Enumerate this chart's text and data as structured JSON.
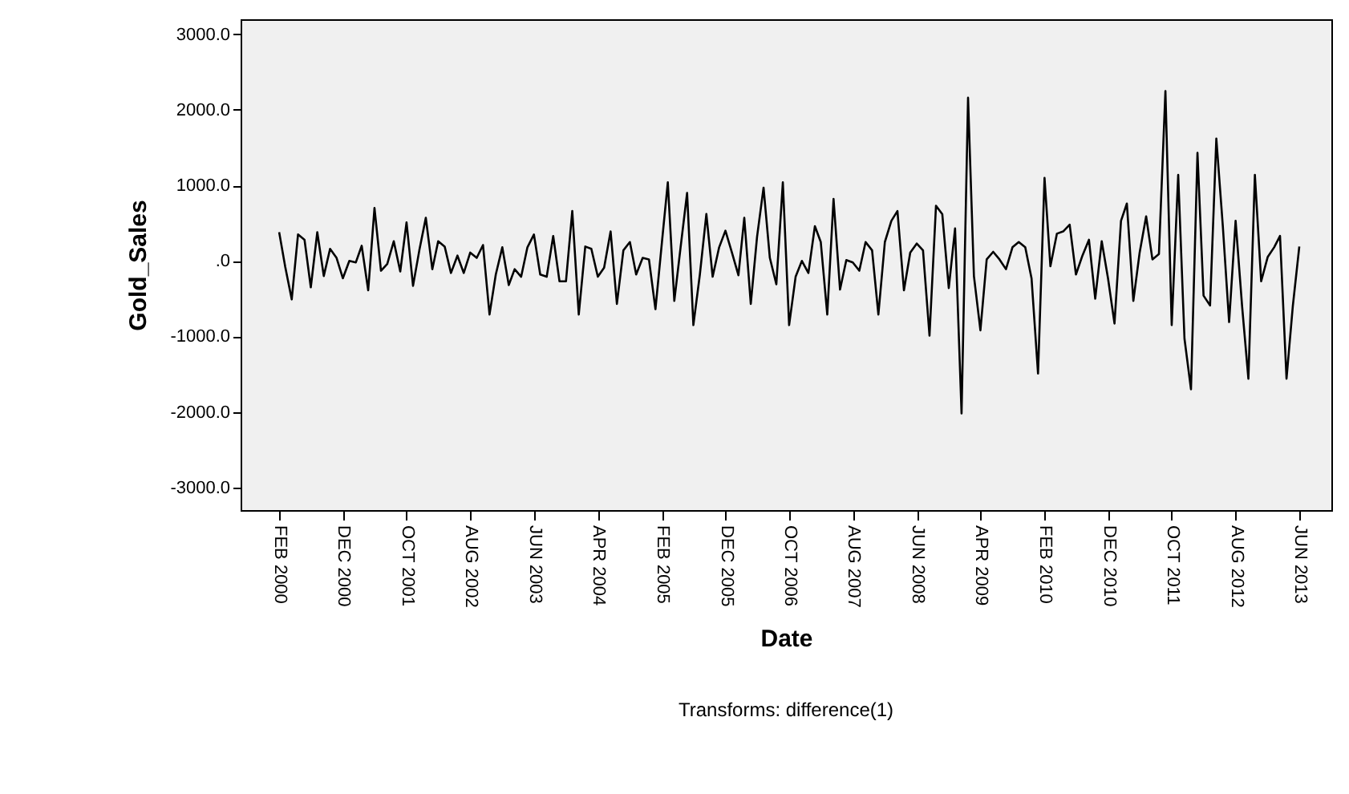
{
  "chart_data": {
    "type": "line",
    "xlabel": "Date",
    "ylabel": "Gold_Sales",
    "annotations": [
      "Transforms: difference(1)"
    ],
    "x": [
      "2000-02",
      "2000-03",
      "2000-04",
      "2000-05",
      "2000-06",
      "2000-07",
      "2000-08",
      "2000-09",
      "2000-10",
      "2000-11",
      "2000-12",
      "2001-01",
      "2001-02",
      "2001-03",
      "2001-04",
      "2001-05",
      "2001-06",
      "2001-07",
      "2001-08",
      "2001-09",
      "2001-10",
      "2001-11",
      "2001-12",
      "2002-01",
      "2002-02",
      "2002-03",
      "2002-04",
      "2002-05",
      "2002-06",
      "2002-07",
      "2002-08",
      "2002-09",
      "2002-10",
      "2002-11",
      "2002-12",
      "2003-01",
      "2003-02",
      "2003-03",
      "2003-04",
      "2003-05",
      "2003-06",
      "2003-07",
      "2003-08",
      "2003-09",
      "2003-10",
      "2003-11",
      "2003-12",
      "2004-01",
      "2004-02",
      "2004-03",
      "2004-04",
      "2004-05",
      "2004-06",
      "2004-07",
      "2004-08",
      "2004-09",
      "2004-10",
      "2004-11",
      "2004-12",
      "2005-01",
      "2005-02",
      "2005-03",
      "2005-04",
      "2005-05",
      "2005-06",
      "2005-07",
      "2005-08",
      "2005-09",
      "2005-10",
      "2005-11",
      "2005-12",
      "2006-01",
      "2006-02",
      "2006-03",
      "2006-04",
      "2006-05",
      "2006-06",
      "2006-07",
      "2006-08",
      "2006-09",
      "2006-10",
      "2006-11",
      "2006-12",
      "2007-01",
      "2007-02",
      "2007-03",
      "2007-04",
      "2007-05",
      "2007-06",
      "2007-07",
      "2007-08",
      "2007-09",
      "2007-10",
      "2007-11",
      "2007-12",
      "2008-01",
      "2008-02",
      "2008-03",
      "2008-04",
      "2008-05",
      "2008-06",
      "2008-07",
      "2008-08",
      "2008-09",
      "2008-10",
      "2008-11",
      "2008-12",
      "2009-01",
      "2009-02",
      "2009-03",
      "2009-04",
      "2009-05",
      "2009-06",
      "2009-07",
      "2009-08",
      "2009-09",
      "2009-10",
      "2009-11",
      "2009-12",
      "2010-01",
      "2010-02",
      "2010-03",
      "2010-04",
      "2010-05",
      "2010-06",
      "2010-07",
      "2010-08",
      "2010-09",
      "2010-10",
      "2010-11",
      "2010-12",
      "2011-01",
      "2011-02",
      "2011-03",
      "2011-04",
      "2011-05",
      "2011-06",
      "2011-07",
      "2011-08",
      "2011-09",
      "2011-10",
      "2011-11",
      "2011-12",
      "2012-01",
      "2012-02",
      "2012-03",
      "2012-04",
      "2012-05",
      "2012-06",
      "2012-07",
      "2012-08",
      "2012-09",
      "2012-10",
      "2012-11",
      "2012-12",
      "2013-01",
      "2013-02",
      "2013-03",
      "2013-04",
      "2013-05",
      "2013-06"
    ],
    "series": [
      {
        "color": "#000000",
        "values": [
          380,
          -80,
          -510,
          350,
          280,
          -350,
          380,
          -200,
          160,
          40,
          -230,
          0,
          -20,
          200,
          -390,
          700,
          -130,
          -40,
          260,
          -140,
          510,
          -330,
          140,
          570,
          -110,
          260,
          190,
          -160,
          70,
          -160,
          110,
          40,
          210,
          -710,
          -180,
          180,
          -320,
          -110,
          -210,
          180,
          350,
          -180,
          -210,
          330,
          -270,
          -270,
          660,
          -710,
          190,
          160,
          -210,
          -90,
          390,
          -570,
          140,
          250,
          -180,
          40,
          20,
          -640,
          250,
          1040,
          -530,
          180,
          900,
          -850,
          -180,
          620,
          -210,
          180,
          400,
          110,
          -190,
          570,
          -570,
          320,
          970,
          40,
          -310,
          1040,
          -850,
          -210,
          0,
          -160,
          460,
          250,
          -710,
          820,
          -380,
          10,
          -20,
          -130,
          250,
          140,
          -710,
          250,
          530,
          660,
          -390,
          110,
          230,
          140,
          -990,
          730,
          620,
          -360,
          430,
          -2020,
          2160,
          -200,
          -920,
          20,
          120,
          20,
          -110,
          180,
          250,
          180,
          -230,
          -1490,
          1100,
          -70,
          360,
          390,
          480,
          -180,
          70,
          280,
          -500,
          260,
          -230,
          -830,
          530,
          760,
          -530,
          110,
          590,
          20,
          90,
          2250,
          -850,
          1140,
          -1030,
          -1700,
          1430,
          -460,
          -590,
          1620,
          460,
          -810,
          530,
          -600,
          -1560,
          1140,
          -270,
          50,
          180,
          330,
          -1560,
          -600,
          190
        ]
      }
    ],
    "xlim": [
      "1999-08",
      "2013-11"
    ],
    "xticks": [
      {
        "value": "2000-02",
        "label": "FEB 2000"
      },
      {
        "value": "2000-12",
        "label": "DEC 2000"
      },
      {
        "value": "2001-10",
        "label": "OCT 2001"
      },
      {
        "value": "2002-08",
        "label": "AUG 2002"
      },
      {
        "value": "2003-06",
        "label": "JUN 2003"
      },
      {
        "value": "2004-04",
        "label": "APR 2004"
      },
      {
        "value": "2005-02",
        "label": "FEB 2005"
      },
      {
        "value": "2005-12",
        "label": "DEC 2005"
      },
      {
        "value": "2006-10",
        "label": "OCT 2006"
      },
      {
        "value": "2007-08",
        "label": "AUG 2007"
      },
      {
        "value": "2008-06",
        "label": "JUN 2008"
      },
      {
        "value": "2009-04",
        "label": "APR 2009"
      },
      {
        "value": "2010-02",
        "label": "FEB 2010"
      },
      {
        "value": "2010-12",
        "label": "DEC 2010"
      },
      {
        "value": "2011-10",
        "label": "OCT 2011"
      },
      {
        "value": "2012-08",
        "label": "AUG 2012"
      },
      {
        "value": "2013-06",
        "label": "JUN 2013"
      }
    ],
    "ylim": [
      -3300,
      3200
    ],
    "yticks": [
      {
        "value": 3000,
        "label": "3000.0"
      },
      {
        "value": 2000,
        "label": "2000.0"
      },
      {
        "value": 1000,
        "label": "1000.0"
      },
      {
        "value": 0,
        "label": ".0"
      },
      {
        "value": -1000,
        "label": "-1000.0"
      },
      {
        "value": -2000,
        "label": "-2000.0"
      },
      {
        "value": -3000,
        "label": "-3000.0"
      }
    ],
    "grid": false,
    "marker": "none",
    "line_style": "solid"
  }
}
